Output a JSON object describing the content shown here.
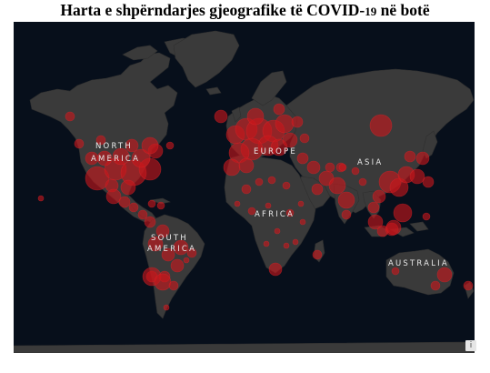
{
  "title": {
    "main": "Harta e shpërndarjes gjeografike të COVID-",
    "num": "19",
    "tail": " në botë"
  },
  "map": {
    "background_color": "#070f1b",
    "land_color": "#3a3a3a",
    "bubble_color": "#c8161b",
    "attribution_icon": "info-icon",
    "attribution_glyph": "i",
    "region_labels": {
      "north_america_1": "NORTH",
      "north_america_2": "AMERICA",
      "south_america_1": "SOUTH",
      "south_america_2": "AMERICA",
      "europe": "EUROPE",
      "africa": "AFRICA",
      "asia": "ASIA",
      "australia": "AUSTRALIA"
    }
  }
}
